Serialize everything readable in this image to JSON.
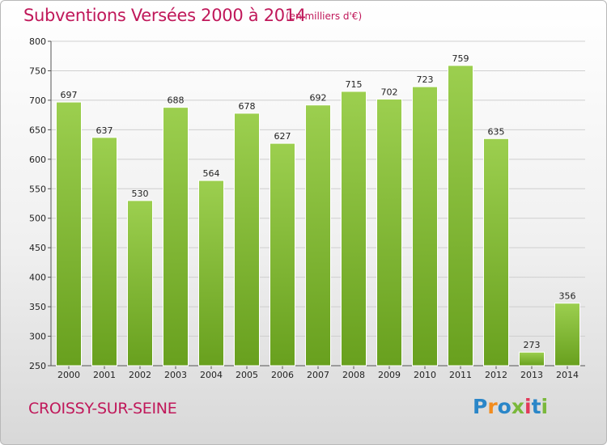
{
  "header": {
    "title": "Subventions Versées 2000 à 2014",
    "unit_note": "(en milliers d'€)"
  },
  "footer": {
    "place": "CROISSY-SUR-SEINE",
    "brand": "Proxiti"
  },
  "colors": {
    "title": "#c0185a",
    "bar_light": "#9ccf4f",
    "bar_dark": "#68a01e",
    "grid": "#cfcfcf"
  },
  "chart_data": {
    "type": "bar",
    "title": "Subventions Versées 2000 à 2014",
    "subtitle": "(en milliers d'€)",
    "xlabel": "",
    "ylabel": "",
    "categories": [
      "2000",
      "2001",
      "2002",
      "2003",
      "2004",
      "2005",
      "2006",
      "2007",
      "2008",
      "2009",
      "2010",
      "2011",
      "2012",
      "2013",
      "2014"
    ],
    "values": [
      697,
      637,
      530,
      688,
      564,
      678,
      627,
      692,
      715,
      702,
      723,
      759,
      635,
      273,
      356
    ],
    "ylim": [
      250,
      800
    ],
    "yticks": [
      250,
      300,
      350,
      400,
      450,
      500,
      550,
      600,
      650,
      700,
      750,
      800
    ],
    "grid": true,
    "data_labels": true
  }
}
